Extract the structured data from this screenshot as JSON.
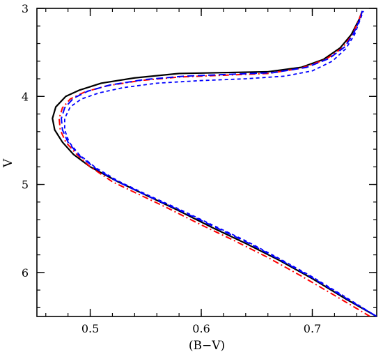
{
  "chart_data": {
    "type": "line",
    "title": "",
    "xlabel": "(B−V)",
    "ylabel": "V",
    "xlim": [
      0.452,
      0.758
    ],
    "ylim": [
      6.5,
      3.0
    ],
    "y_inverted": true,
    "grid": false,
    "legend": "none",
    "x_ticks": [
      {
        "value": 0.5,
        "label": "0.5"
      },
      {
        "value": 0.6,
        "label": "0.6"
      },
      {
        "value": 0.7,
        "label": "0.7"
      }
    ],
    "y_ticks": [
      {
        "value": 3,
        "label": "3"
      },
      {
        "value": 4,
        "label": "4"
      },
      {
        "value": 5,
        "label": "5"
      },
      {
        "value": 6,
        "label": "6"
      }
    ],
    "x_minor_step": 0.02,
    "y_minor_step": 0.2,
    "series": [
      {
        "color": "#000000",
        "dash": "solid",
        "points": [
          [
            0.758,
            6.5
          ],
          [
            0.73,
            6.3
          ],
          [
            0.7,
            6.07
          ],
          [
            0.67,
            5.86
          ],
          [
            0.64,
            5.67
          ],
          [
            0.61,
            5.49
          ],
          [
            0.58,
            5.3
          ],
          [
            0.55,
            5.12
          ],
          [
            0.525,
            4.97
          ],
          [
            0.5,
            4.8
          ],
          [
            0.485,
            4.66
          ],
          [
            0.475,
            4.52
          ],
          [
            0.468,
            4.38
          ],
          [
            0.466,
            4.25
          ],
          [
            0.469,
            4.12
          ],
          [
            0.478,
            4.0
          ],
          [
            0.49,
            3.93
          ],
          [
            0.51,
            3.85
          ],
          [
            0.54,
            3.79
          ],
          [
            0.58,
            3.74
          ],
          [
            0.62,
            3.73
          ],
          [
            0.66,
            3.72
          ],
          [
            0.69,
            3.67
          ],
          [
            0.71,
            3.58
          ],
          [
            0.725,
            3.45
          ],
          [
            0.735,
            3.3
          ],
          [
            0.742,
            3.13
          ],
          [
            0.745,
            3.03
          ]
        ]
      },
      {
        "color": "#ff0000",
        "dash": "dash-dot",
        "points": [
          [
            0.752,
            6.5
          ],
          [
            0.72,
            6.26
          ],
          [
            0.69,
            6.04
          ],
          [
            0.66,
            5.83
          ],
          [
            0.63,
            5.64
          ],
          [
            0.6,
            5.46
          ],
          [
            0.57,
            5.27
          ],
          [
            0.545,
            5.12
          ],
          [
            0.52,
            4.97
          ],
          [
            0.5,
            4.8
          ],
          [
            0.488,
            4.66
          ],
          [
            0.478,
            4.52
          ],
          [
            0.473,
            4.38
          ],
          [
            0.472,
            4.25
          ],
          [
            0.475,
            4.13
          ],
          [
            0.482,
            4.03
          ],
          [
            0.495,
            3.95
          ],
          [
            0.515,
            3.88
          ],
          [
            0.545,
            3.82
          ],
          [
            0.58,
            3.78
          ],
          [
            0.62,
            3.76
          ],
          [
            0.66,
            3.74
          ],
          [
            0.69,
            3.68
          ],
          [
            0.712,
            3.58
          ],
          [
            0.727,
            3.45
          ],
          [
            0.736,
            3.3
          ],
          [
            0.742,
            3.13
          ],
          [
            0.745,
            3.03
          ]
        ]
      },
      {
        "color": "#0000ff",
        "dash": "long-dash",
        "points": [
          [
            0.758,
            6.5
          ],
          [
            0.73,
            6.29
          ],
          [
            0.7,
            6.06
          ],
          [
            0.67,
            5.85
          ],
          [
            0.64,
            5.65
          ],
          [
            0.61,
            5.47
          ],
          [
            0.58,
            5.29
          ],
          [
            0.55,
            5.12
          ],
          [
            0.525,
            4.97
          ],
          [
            0.505,
            4.82
          ],
          [
            0.49,
            4.67
          ],
          [
            0.48,
            4.52
          ],
          [
            0.475,
            4.38
          ],
          [
            0.474,
            4.25
          ],
          [
            0.477,
            4.13
          ],
          [
            0.485,
            4.02
          ],
          [
            0.498,
            3.94
          ],
          [
            0.518,
            3.87
          ],
          [
            0.548,
            3.81
          ],
          [
            0.585,
            3.77
          ],
          [
            0.625,
            3.75
          ],
          [
            0.665,
            3.73
          ],
          [
            0.695,
            3.67
          ],
          [
            0.715,
            3.57
          ],
          [
            0.729,
            3.44
          ],
          [
            0.737,
            3.29
          ],
          [
            0.743,
            3.12
          ],
          [
            0.745,
            3.03
          ]
        ]
      },
      {
        "color": "#0000ff",
        "dash": "short-dash",
        "points": [
          [
            0.758,
            6.5
          ],
          [
            0.73,
            6.28
          ],
          [
            0.7,
            6.05
          ],
          [
            0.67,
            5.84
          ],
          [
            0.64,
            5.64
          ],
          [
            0.61,
            5.46
          ],
          [
            0.58,
            5.28
          ],
          [
            0.55,
            5.11
          ],
          [
            0.525,
            4.96
          ],
          [
            0.505,
            4.81
          ],
          [
            0.49,
            4.66
          ],
          [
            0.481,
            4.52
          ],
          [
            0.477,
            4.38
          ],
          [
            0.477,
            4.25
          ],
          [
            0.482,
            4.12
          ],
          [
            0.492,
            4.03
          ],
          [
            0.508,
            3.96
          ],
          [
            0.53,
            3.9
          ],
          [
            0.56,
            3.85
          ],
          [
            0.6,
            3.82
          ],
          [
            0.64,
            3.8
          ],
          [
            0.675,
            3.77
          ],
          [
            0.7,
            3.71
          ],
          [
            0.718,
            3.6
          ],
          [
            0.73,
            3.46
          ],
          [
            0.738,
            3.3
          ],
          [
            0.743,
            3.13
          ],
          [
            0.746,
            3.03
          ]
        ]
      }
    ]
  }
}
